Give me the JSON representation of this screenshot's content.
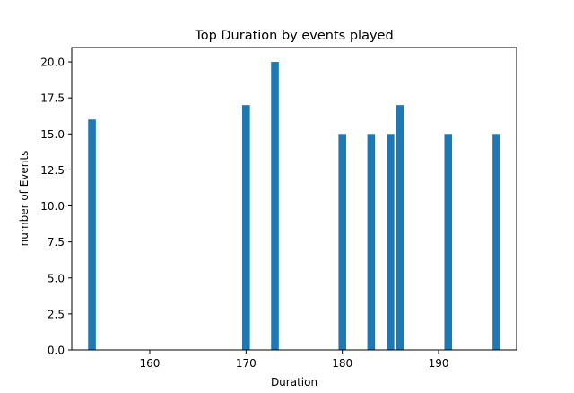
{
  "chart_data": {
    "type": "bar",
    "title": "Top Duration by events played",
    "xlabel": "Duration",
    "ylabel": "number of Events",
    "x": [
      154,
      170,
      173,
      180,
      183,
      185,
      186,
      191,
      196
    ],
    "values": [
      16,
      17,
      20,
      15,
      15,
      15,
      17,
      15,
      15
    ],
    "xlim": [
      151.9,
      198.1
    ],
    "ylim": [
      0,
      21
    ],
    "xticks": [
      160,
      170,
      180,
      190
    ],
    "yticks": [
      0,
      2.5,
      5,
      7.5,
      10,
      12.5,
      15,
      17.5,
      20
    ],
    "xtick_labels": [
      "160",
      "170",
      "180",
      "190"
    ],
    "ytick_labels": [
      "0.0",
      "2.5",
      "5.0",
      "7.5",
      "10.0",
      "12.5",
      "15.0",
      "17.5",
      "20.0"
    ],
    "bar_width": 0.8,
    "bar_color": "#1f77b4",
    "grid": false,
    "legend": "none"
  }
}
